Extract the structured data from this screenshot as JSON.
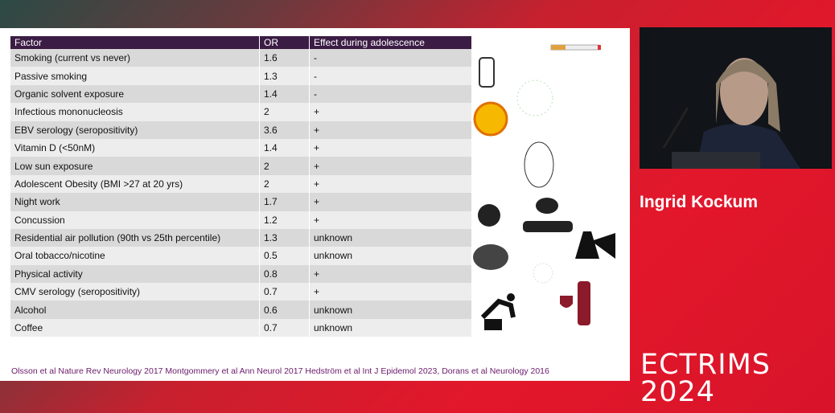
{
  "table": {
    "header": [
      "Factor",
      "OR",
      "Effect during adolescence"
    ],
    "rows": [
      [
        "Smoking (current vs never)",
        1.6,
        "-"
      ],
      [
        "Passive smoking",
        1.3,
        "-"
      ],
      [
        "Organic solvent exposure",
        1.4,
        "-"
      ],
      [
        "Infectious mononucleosis",
        2,
        "+"
      ],
      [
        "EBV serology (seropositivity)",
        3.6,
        "+"
      ],
      [
        "Vitamin D (<50nM)",
        1.4,
        "+"
      ],
      [
        "Low sun exposure",
        2,
        "+"
      ],
      [
        "Adolescent Obesity (BMI >27 at 20 yrs)",
        2,
        "+"
      ],
      [
        "Night work",
        1.7,
        "+"
      ],
      [
        "Concussion",
        1.2,
        "+"
      ],
      [
        "Residential air pollution (90th vs 25th percentile)",
        1.3,
        "unknown"
      ],
      [
        "Oral tobacco/nicotine",
        0.5,
        "unknown"
      ],
      [
        "Physical activity",
        0.8,
        "+"
      ],
      [
        "CMV serology (seropositivity)",
        0.7,
        "+"
      ],
      [
        "Alcohol",
        0.6,
        "unknown"
      ],
      [
        "Coffee",
        0.7,
        "unknown"
      ]
    ]
  },
  "citation": "Olsson et al Nature Rev Neurology 2017 Montgommery et al Ann Neurol 2017 Hedström et al Int J Epidemol 2023, Dorans et al Neurology 2016",
  "speaker": "Ingrid Kockum",
  "logo": {
    "line1": "ECTRIMS",
    "line2": "2024"
  }
}
